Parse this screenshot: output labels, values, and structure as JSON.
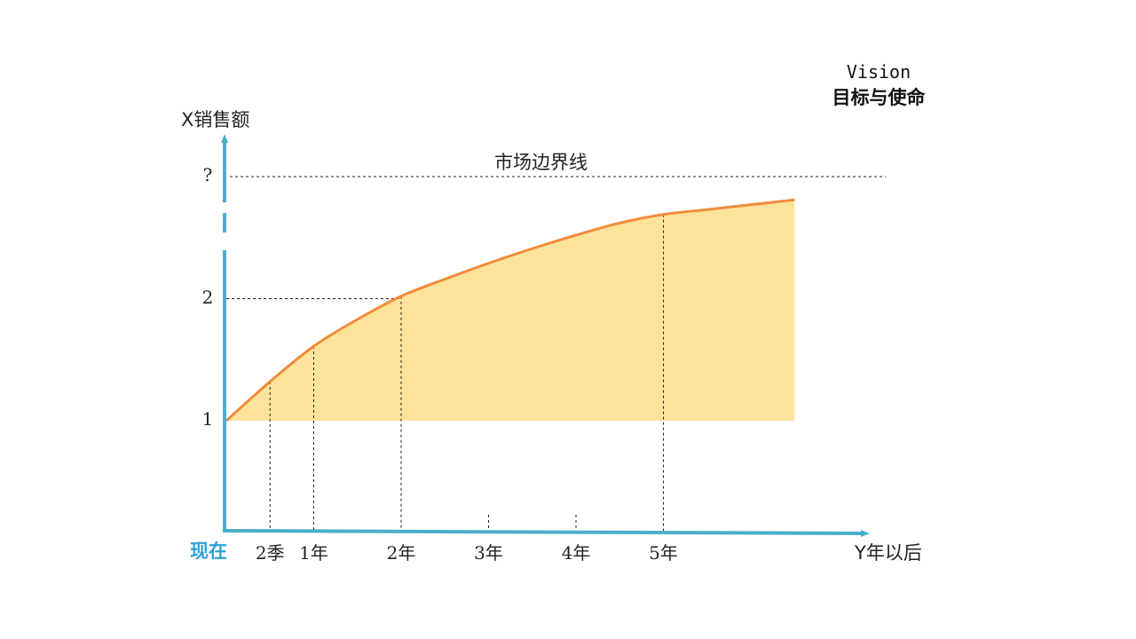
{
  "vision": {
    "title": "Vision",
    "subtitle": "目标与使命"
  },
  "y_axis": {
    "title": "X销售额",
    "ticks": [
      {
        "label": "1",
        "value": 1
      },
      {
        "label": "2",
        "value": 2
      },
      {
        "label": "?",
        "value": 3
      }
    ]
  },
  "x_axis": {
    "title": "Y年以后",
    "origin_label": "现在",
    "ticks": [
      {
        "label": "2季",
        "value": 0.5,
        "guide": "full"
      },
      {
        "label": "1年",
        "value": 1,
        "guide": "full"
      },
      {
        "label": "2年",
        "value": 2,
        "guide": "full"
      },
      {
        "label": "3年",
        "value": 3,
        "guide": "short"
      },
      {
        "label": "4年",
        "value": 4,
        "guide": "short"
      },
      {
        "label": "5年",
        "value": 5,
        "guide": "full"
      }
    ]
  },
  "boundary": {
    "label": "市场边界线",
    "value": 3
  },
  "curve": {
    "points": [
      [
        0,
        1
      ],
      [
        0.5,
        1.32
      ],
      [
        1,
        1.61
      ],
      [
        1.5,
        1.83
      ],
      [
        2,
        2.02
      ],
      [
        2.5,
        2.16
      ],
      [
        3,
        2.29
      ],
      [
        3.5,
        2.41
      ],
      [
        4,
        2.52
      ],
      [
        4.5,
        2.62
      ],
      [
        5,
        2.69
      ],
      [
        5.5,
        2.73
      ],
      [
        6,
        2.77
      ],
      [
        6.5,
        2.81
      ]
    ]
  },
  "colors": {
    "axis": "#4BAEC8",
    "curve": "#F08C3C",
    "fill": "#FDE39A",
    "origin_label": "#2BA3D6",
    "guide": "#222222"
  }
}
